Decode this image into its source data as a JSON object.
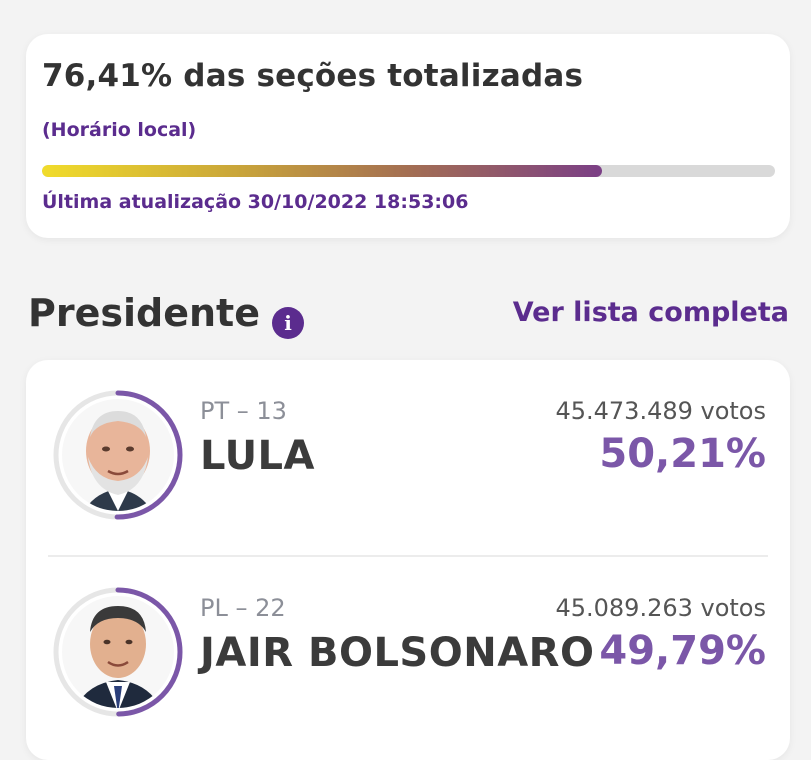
{
  "status": {
    "title": "76,41% das seções totalizadas",
    "local_time": "(Horário local)",
    "progress": 0.7641,
    "last_update": "Última atualização 30/10/2022 18:53:06",
    "progress_start_color": "#f1dc2b",
    "progress_end_color": "#7b3f86"
  },
  "section": {
    "title": "Presidente",
    "info_icon": "info-icon",
    "view_list_label": "Ver lista completa"
  },
  "candidates": [
    {
      "party": "PT – 13",
      "name": "LULA",
      "votes": "45.473.489 votos",
      "percent": "50,21%",
      "share": 0.5021
    },
    {
      "party": "PL – 22",
      "name": "JAIR BOLSONARO",
      "votes": "45.089.263 votos",
      "percent": "49,79%",
      "share": 0.4979
    }
  ],
  "colors": {
    "accent": "#5b2c8e",
    "percent": "#7b57a8",
    "ring_track": "#e6e6e6",
    "ring_fill": "#7b57a8"
  }
}
